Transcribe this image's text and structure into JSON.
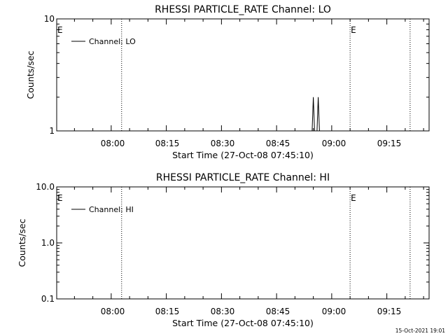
{
  "chart_data": [
    {
      "type": "line",
      "title": "RHESSI PARTICLE_RATE Channel: LO",
      "xlabel": "Start Time (27-Oct-08 07:45:10)",
      "ylabel": "Counts/sec",
      "y_scale": "log",
      "ylim": [
        1,
        10
      ],
      "yticks": [
        "10",
        "1"
      ],
      "xlim": [
        "07:45:10",
        "09:26:30"
      ],
      "xticks": [
        "08:00",
        "08:15",
        "08:30",
        "08:45",
        "09:00",
        "09:15"
      ],
      "grid": false,
      "legend": "top-left",
      "series": [
        {
          "name": "Channel: LO",
          "x": [
            "08:54:20",
            "08:54:40",
            "08:55:00",
            "08:55:20",
            "08:55:40",
            "08:56:00",
            "08:56:20",
            "08:56:40",
            "08:57:00"
          ],
          "y": [
            1,
            1,
            2,
            1,
            1,
            1,
            2,
            1,
            1
          ]
        }
      ],
      "vertical_markers": [
        "08:02:50",
        "09:05:00",
        "09:21:20"
      ],
      "annotations": [
        {
          "text": "E",
          "x": "07:45:10"
        },
        {
          "text": "E",
          "x": "09:05:00"
        }
      ]
    },
    {
      "type": "line",
      "title": "RHESSI PARTICLE_RATE Channel: HI",
      "xlabel": "Start Time (27-Oct-08 07:45:10)",
      "ylabel": "Counts/sec",
      "y_scale": "log",
      "ylim": [
        0.1,
        10
      ],
      "yticks": [
        "10.0",
        "1.0",
        "0.1"
      ],
      "xlim": [
        "07:45:10",
        "09:26:30"
      ],
      "xticks": [
        "08:00",
        "08:15",
        "08:30",
        "08:45",
        "09:00",
        "09:15"
      ],
      "grid": false,
      "legend": "top-left",
      "series": [
        {
          "name": "Channel: HI",
          "x": [],
          "y": []
        }
      ],
      "vertical_markers": [
        "08:02:50",
        "09:05:00",
        "09:21:20"
      ],
      "annotations": [
        {
          "text": "E",
          "x": "07:45:10"
        },
        {
          "text": "E",
          "x": "09:05:00"
        }
      ]
    }
  ],
  "footer": {
    "timestamp": "15-Oct-2021 19:01"
  }
}
